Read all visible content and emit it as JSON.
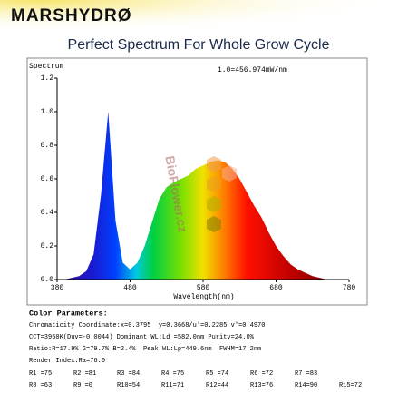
{
  "brand": "MARSHYDRØ",
  "watermark": "BioFlower.cz",
  "chart_data": {
    "type": "area",
    "title": "Perfect Spectrum For Whole Grow Cycle",
    "y_label": "Spectrum",
    "annotation": "1.0=456.974mW/nm",
    "x_label": "Wavelength(nm)",
    "x": [
      380,
      390,
      400,
      410,
      420,
      430,
      440,
      450,
      460,
      470,
      480,
      490,
      500,
      510,
      520,
      530,
      540,
      550,
      560,
      570,
      580,
      590,
      600,
      610,
      620,
      630,
      640,
      650,
      660,
      670,
      680,
      690,
      700,
      710,
      720,
      730,
      740,
      750,
      760,
      770,
      780
    ],
    "values": [
      0,
      0,
      0.01,
      0.02,
      0.05,
      0.15,
      0.5,
      1.0,
      0.35,
      0.1,
      0.06,
      0.1,
      0.2,
      0.34,
      0.48,
      0.55,
      0.58,
      0.6,
      0.62,
      0.66,
      0.68,
      0.7,
      0.71,
      0.7,
      0.66,
      0.6,
      0.52,
      0.44,
      0.37,
      0.28,
      0.2,
      0.14,
      0.09,
      0.06,
      0.04,
      0.02,
      0.01,
      0,
      0,
      0,
      0
    ],
    "xlim": [
      380,
      780
    ],
    "xticks": [
      380,
      480,
      580,
      680,
      780
    ],
    "ylim": [
      0,
      1.2
    ],
    "yticks": [
      {
        "value": 0,
        "label": "0.0"
      },
      0.2,
      0.4,
      0.6,
      0.8,
      {
        "value": 1,
        "label": "1.0"
      },
      1.2
    ]
  },
  "color_parameters": {
    "heading": "Color Parameters:",
    "lines": [
      "Chromaticity Coordinate:x=0.3795  y=0.3668/u'=0.2285 v'=0.4970",
      "CCT=3950K(Duv=-0.0044) Dominant WL:Ld =582.0nm Purity=24.0%",
      "Ratio:R=17.9% G=79.7% B=2.4%  Peak WL:Lp=449.6nm  FWHM=17.2nm",
      "Render Index:Ra=76.0"
    ],
    "r_rows": [
      [
        "R1 =75",
        "R2 =81",
        "R3 =84",
        "R4 =75",
        "R5 =74",
        "R6 =72",
        "R7 =83"
      ],
      [
        "R8 =63",
        "R9 =0",
        "R10=54",
        "R11=71",
        "R12=44",
        "R13=76",
        "R14=90",
        "R15=72"
      ]
    ]
  }
}
